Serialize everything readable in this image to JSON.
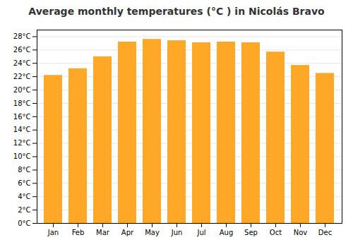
{
  "chart_data": {
    "type": "bar",
    "title": "Average monthly temperatures (°C ) in Nicolás Bravo",
    "categories": [
      "Jan",
      "Feb",
      "Mar",
      "Apr",
      "May",
      "Jun",
      "Jul",
      "Aug",
      "Sep",
      "Oct",
      "Nov",
      "Dec"
    ],
    "values": [
      22.2,
      23.2,
      25.0,
      27.2,
      27.6,
      27.4,
      27.1,
      27.2,
      27.1,
      25.7,
      23.7,
      22.5
    ],
    "color": "#FFA726",
    "ylim": [
      0,
      29
    ],
    "yticks": [
      {
        "value": 0,
        "label": "0°C"
      },
      {
        "value": 2,
        "label": "2°C"
      },
      {
        "value": 4,
        "label": "4°C"
      },
      {
        "value": 6,
        "label": "6°C"
      },
      {
        "value": 8,
        "label": "8°C"
      },
      {
        "value": 10,
        "label": "10°C"
      },
      {
        "value": 12,
        "label": "12°C"
      },
      {
        "value": 14,
        "label": "14°C"
      },
      {
        "value": 16,
        "label": "16°C"
      },
      {
        "value": 18,
        "label": "18°C"
      },
      {
        "value": 20,
        "label": "20°C"
      },
      {
        "value": 22,
        "label": "22°C"
      },
      {
        "value": 24,
        "label": "24°C"
      },
      {
        "value": 26,
        "label": "26°C"
      },
      {
        "value": 28,
        "label": "28°C"
      }
    ],
    "grid": true
  }
}
